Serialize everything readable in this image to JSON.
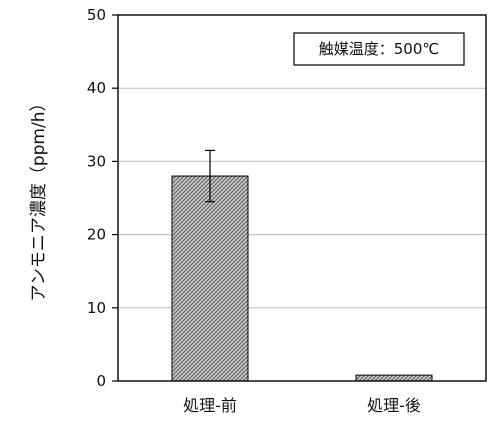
{
  "chart_data": {
    "type": "bar",
    "categories": [
      "処理-前",
      "処理-後"
    ],
    "values": [
      28,
      0.8
    ],
    "error_bars": [
      {
        "low": 24.5,
        "high": 31.5
      },
      null
    ],
    "title": "",
    "xlabel": "",
    "ylabel": "アンモニア濃度（ppm/h）",
    "ylim": [
      0,
      50
    ],
    "yticks": [
      0,
      10,
      20,
      30,
      40,
      50
    ],
    "grid": true,
    "annotation": "触媒温度：500℃",
    "colors": {
      "bar_fill": "#cfcfcf",
      "bar_hatch": "#555555",
      "axis": "#000000",
      "grid": "#bdbdbd"
    }
  }
}
